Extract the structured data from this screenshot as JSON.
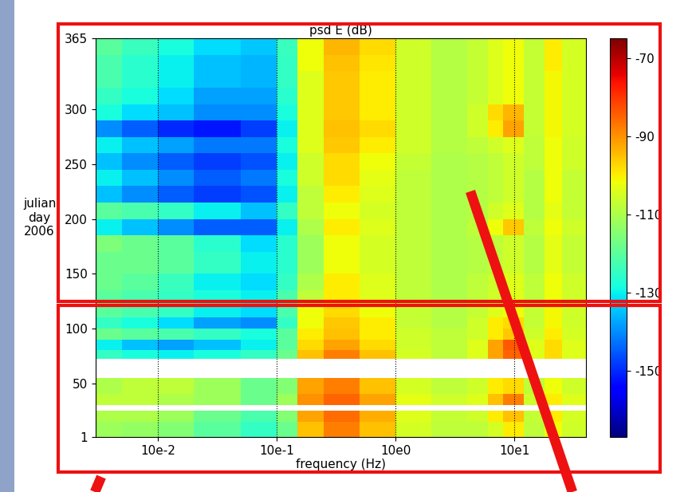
{
  "chart_data": {
    "type": "heatmap",
    "title": "psd E (dB)",
    "x_label": "frequency (Hz)",
    "y_label": "julian\nday\n2006",
    "log": "x",
    "grid": true,
    "xlim": [
      0.003,
      40
    ],
    "xticks": [
      {
        "value": 0.01,
        "label": "10e-2"
      },
      {
        "value": 0.1,
        "label": "10e-1"
      },
      {
        "value": 1,
        "label": "10e0"
      },
      {
        "value": 10,
        "label": "10e1"
      }
    ],
    "ylim": [
      1,
      365
    ],
    "yticks": [
      1,
      50,
      100,
      150,
      200,
      250,
      300,
      365
    ],
    "x_edges": [
      0.003,
      0.005,
      0.01,
      0.02,
      0.05,
      0.1,
      0.15,
      0.25,
      0.5,
      1,
      2,
      4,
      6,
      8,
      12,
      18,
      25,
      40
    ],
    "y_edges": [
      1,
      15,
      25,
      30,
      40,
      55,
      62,
      72,
      80,
      90,
      100,
      110,
      120,
      135,
      150,
      170,
      185,
      200,
      215,
      230,
      245,
      260,
      275,
      290,
      305,
      320,
      335,
      350,
      365
    ],
    "cells": [
      [
        -112,
        -113,
        -115,
        -120,
        -125,
        -118,
        -95,
        -88,
        -95,
        -105,
        -108,
        -108,
        -105,
        -100,
        -108,
        -102,
        -106
      ],
      [
        -110,
        -110,
        -112,
        -118,
        -122,
        -115,
        -92,
        -86,
        -93,
        -104,
        -107,
        -106,
        -100,
        -95,
        -107,
        -100,
        -105
      ],
      [
        null,
        null,
        null,
        null,
        null,
        null,
        null,
        null,
        null,
        null,
        null,
        null,
        null,
        null,
        null,
        null,
        null
      ],
      [
        -108,
        -108,
        -110,
        -112,
        -118,
        -112,
        -90,
        -85,
        -92,
        -103,
        -106,
        -104,
        -95,
        -88,
        -106,
        -100,
        -104
      ],
      [
        -110,
        -108,
        -108,
        -112,
        -118,
        -115,
        -92,
        -88,
        -95,
        -105,
        -108,
        -106,
        -100,
        -98,
        -108,
        -102,
        -106
      ],
      [
        null,
        null,
        null,
        null,
        null,
        null,
        null,
        null,
        null,
        null,
        null,
        null,
        null,
        null,
        null,
        null,
        null
      ],
      [
        null,
        null,
        null,
        null,
        null,
        null,
        null,
        null,
        null,
        null,
        null,
        null,
        null,
        null,
        null,
        null,
        null
      ],
      [
        -125,
        -128,
        -130,
        -128,
        -125,
        -118,
        -95,
        -88,
        -95,
        -105,
        -108,
        -104,
        -92,
        -85,
        -104,
        -98,
        -104
      ],
      [
        -130,
        -135,
        -138,
        -135,
        -130,
        -120,
        -98,
        -92,
        -98,
        -106,
        -108,
        -104,
        -92,
        -84,
        -104,
        -98,
        -104
      ],
      [
        -118,
        -120,
        -122,
        -125,
        -128,
        -120,
        -100,
        -95,
        -100,
        -106,
        -108,
        -106,
        -100,
        -96,
        -106,
        -100,
        -105
      ],
      [
        -125,
        -128,
        -132,
        -138,
        -140,
        -125,
        -102,
        -96,
        -100,
        -107,
        -109,
        -106,
        -100,
        -98,
        -107,
        -101,
        -106
      ],
      [
        -120,
        -122,
        -125,
        -130,
        -132,
        -122,
        -102,
        -98,
        -102,
        -107,
        -109,
        -107,
        -104,
        -102,
        -107,
        -101,
        -106
      ],
      [
        -120,
        -122,
        -125,
        -128,
        -130,
        -122,
        -108,
        -100,
        -104,
        -108,
        -110,
        -108,
        -106,
        -104,
        -108,
        -102,
        -106
      ],
      [
        -118,
        -120,
        -124,
        -130,
        -132,
        -125,
        -110,
        -100,
        -104,
        -108,
        -110,
        -108,
        -106,
        -104,
        -108,
        -102,
        -106
      ],
      [
        -118,
        -118,
        -120,
        -125,
        -130,
        -126,
        -112,
        -102,
        -105,
        -108,
        -110,
        -109,
        -108,
        -106,
        -109,
        -103,
        -107
      ],
      [
        -116,
        -118,
        -120,
        -126,
        -132,
        -126,
        -112,
        -102,
        -105,
        -108,
        -110,
        -109,
        -108,
        -106,
        -109,
        -103,
        -107
      ],
      [
        -130,
        -135,
        -140,
        -145,
        -145,
        -130,
        -110,
        -100,
        -104,
        -108,
        -110,
        -108,
        -102,
        -96,
        -108,
        -102,
        -106
      ],
      [
        -120,
        -122,
        -125,
        -130,
        -135,
        -125,
        -108,
        -102,
        -105,
        -108,
        -110,
        -109,
        -106,
        -104,
        -109,
        -103,
        -107
      ],
      [
        -135,
        -140,
        -145,
        -148,
        -146,
        -130,
        -108,
        -100,
        -104,
        -108,
        -110,
        -109,
        -108,
        -106,
        -109,
        -102,
        -107
      ],
      [
        -130,
        -135,
        -140,
        -145,
        -142,
        -128,
        -106,
        -98,
        -103,
        -108,
        -110,
        -109,
        -108,
        -106,
        -109,
        -102,
        -107
      ],
      [
        -135,
        -140,
        -145,
        -148,
        -146,
        -130,
        -106,
        -98,
        -102,
        -107,
        -110,
        -109,
        -108,
        -106,
        -108,
        -102,
        -106
      ],
      [
        -130,
        -135,
        -138,
        -142,
        -142,
        -128,
        -104,
        -96,
        -100,
        -106,
        -109,
        -108,
        -106,
        -104,
        -108,
        -102,
        -106
      ],
      [
        -140,
        -145,
        -150,
        -152,
        -148,
        -130,
        -104,
        -95,
        -98,
        -106,
        -109,
        -106,
        -100,
        -92,
        -107,
        -101,
        -105
      ],
      [
        -128,
        -132,
        -135,
        -140,
        -140,
        -128,
        -104,
        -96,
        -100,
        -106,
        -109,
        -106,
        -98,
        -94,
        -107,
        -101,
        -105
      ],
      [
        -125,
        -128,
        -132,
        -138,
        -138,
        -126,
        -104,
        -96,
        -100,
        -106,
        -109,
        -107,
        -104,
        -102,
        -107,
        -101,
        -105
      ],
      [
        -122,
        -126,
        -130,
        -135,
        -136,
        -125,
        -104,
        -96,
        -100,
        -106,
        -109,
        -107,
        -104,
        -102,
        -107,
        -101,
        -105
      ],
      [
        -122,
        -126,
        -130,
        -135,
        -136,
        -125,
        -102,
        -95,
        -99,
        -106,
        -109,
        -107,
        -104,
        -102,
        -107,
        -100,
        -105
      ],
      [
        -120,
        -124,
        -128,
        -132,
        -134,
        -124,
        -102,
        -94,
        -98,
        -106,
        -109,
        -107,
        -104,
        -102,
        -107,
        -100,
        -105
      ]
    ],
    "colorbar": {
      "range": [
        -167,
        -65
      ],
      "ticks": [
        -70,
        -90,
        -110,
        -130,
        -150
      ]
    }
  }
}
